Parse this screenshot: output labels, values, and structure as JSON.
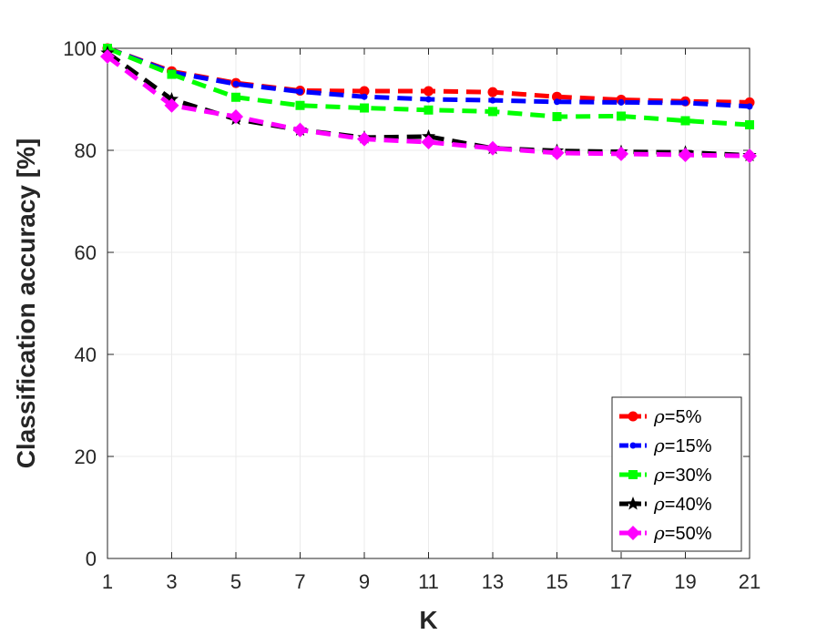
{
  "chart_data": {
    "type": "line",
    "title": "",
    "xlabel": "K",
    "ylabel": "Classification accuracy [%]",
    "x": [
      1,
      3,
      5,
      7,
      9,
      11,
      13,
      15,
      17,
      19,
      21
    ],
    "xticks": [
      1,
      3,
      5,
      7,
      9,
      11,
      13,
      15,
      17,
      19,
      21
    ],
    "yticks": [
      0,
      20,
      40,
      60,
      80,
      100
    ],
    "xlim": [
      1,
      21
    ],
    "ylim": [
      0,
      100
    ],
    "grid": true,
    "legend_position": "bottom-right",
    "series": [
      {
        "name_prefix": "ρ",
        "name_suffix": "=5%",
        "color": "#ff0000",
        "marker": "circle",
        "values": [
          100,
          95.5,
          93.2,
          91.7,
          91.6,
          91.6,
          91.4,
          90.5,
          89.9,
          89.6,
          89.4
        ]
      },
      {
        "name_prefix": "ρ",
        "name_suffix": "=15%",
        "color": "#0000ff",
        "marker": "dot",
        "values": [
          100,
          95.3,
          93.0,
          91.5,
          90.5,
          90.0,
          89.8,
          89.5,
          89.4,
          89.3,
          88.6
        ]
      },
      {
        "name_prefix": "ρ",
        "name_suffix": "=30%",
        "color": "#00ff00",
        "marker": "square",
        "values": [
          100,
          94.9,
          90.4,
          88.8,
          88.3,
          87.9,
          87.6,
          86.6,
          86.7,
          85.8,
          85.0
        ]
      },
      {
        "name_prefix": "ρ",
        "name_suffix": "=40%",
        "color": "#000000",
        "marker": "star",
        "values": [
          99.1,
          90.0,
          86.1,
          84.0,
          82.5,
          82.7,
          80.4,
          79.9,
          79.7,
          79.6,
          79.0
        ]
      },
      {
        "name_prefix": "ρ",
        "name_suffix": "=50%",
        "color": "#ff00ff",
        "marker": "diamond",
        "values": [
          98.4,
          88.8,
          86.6,
          84.0,
          82.2,
          81.6,
          80.4,
          79.5,
          79.3,
          79.1,
          78.9
        ]
      }
    ]
  }
}
